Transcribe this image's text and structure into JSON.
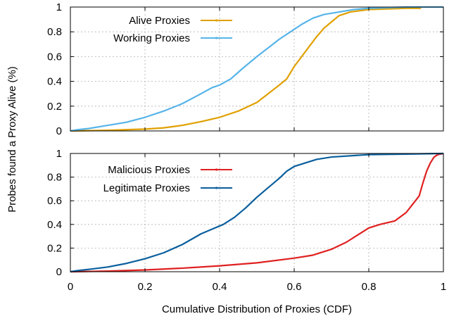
{
  "chart_data": [
    {
      "type": "line",
      "panel": "top",
      "xlim": [
        0,
        1
      ],
      "ylim": [
        0,
        1
      ],
      "x_ticks": [
        "0",
        "0.2",
        "0.4",
        "0.6",
        "0.8",
        "1"
      ],
      "y_ticks": [
        "0",
        "0.2",
        "0.4",
        "0.6",
        "0.8",
        "1"
      ],
      "grid": true,
      "legend_placement": "top-left",
      "series": [
        {
          "name": "Alive Proxies",
          "color": "#e0a000",
          "points": [
            [
              0,
              0
            ],
            [
              0.1,
              0.005
            ],
            [
              0.2,
              0.015
            ],
            [
              0.25,
              0.025
            ],
            [
              0.3,
              0.045
            ],
            [
              0.35,
              0.075
            ],
            [
              0.4,
              0.11
            ],
            [
              0.45,
              0.16
            ],
            [
              0.5,
              0.23
            ],
            [
              0.53,
              0.3
            ],
            [
              0.56,
              0.37
            ],
            [
              0.58,
              0.42
            ],
            [
              0.6,
              0.52
            ],
            [
              0.62,
              0.6
            ],
            [
              0.64,
              0.68
            ],
            [
              0.66,
              0.76
            ],
            [
              0.68,
              0.83
            ],
            [
              0.7,
              0.88
            ],
            [
              0.72,
              0.93
            ],
            [
              0.75,
              0.96
            ],
            [
              0.8,
              0.98
            ],
            [
              0.85,
              0.985
            ],
            [
              0.9,
              0.99
            ],
            [
              0.94,
              0.99
            ]
          ]
        },
        {
          "name": "Working Proxies",
          "color": "#56b4e9",
          "points": [
            [
              0,
              0
            ],
            [
              0.02,
              0.01
            ],
            [
              0.05,
              0.02
            ],
            [
              0.1,
              0.045
            ],
            [
              0.15,
              0.07
            ],
            [
              0.2,
              0.11
            ],
            [
              0.25,
              0.16
            ],
            [
              0.3,
              0.22
            ],
            [
              0.35,
              0.3
            ],
            [
              0.38,
              0.35
            ],
            [
              0.4,
              0.37
            ],
            [
              0.43,
              0.42
            ],
            [
              0.46,
              0.5
            ],
            [
              0.5,
              0.6
            ],
            [
              0.53,
              0.67
            ],
            [
              0.56,
              0.74
            ],
            [
              0.59,
              0.8
            ],
            [
              0.62,
              0.86
            ],
            [
              0.65,
              0.91
            ],
            [
              0.68,
              0.94
            ],
            [
              0.72,
              0.96
            ],
            [
              0.76,
              0.98
            ],
            [
              0.8,
              0.99
            ],
            [
              0.9,
              1
            ],
            [
              1,
              1
            ]
          ]
        }
      ]
    },
    {
      "type": "line",
      "panel": "bottom",
      "xlim": [
        0,
        1
      ],
      "ylim": [
        0,
        1
      ],
      "x_ticks": [
        "0",
        "0.2",
        "0.4",
        "0.6",
        "0.8",
        "1"
      ],
      "y_ticks": [
        "0",
        "0.2",
        "0.4",
        "0.6",
        "0.8",
        "1"
      ],
      "grid": true,
      "legend_placement": "top-left",
      "series": [
        {
          "name": "Malicious Proxies",
          "color": "#e02020",
          "points": [
            [
              0,
              0
            ],
            [
              0.1,
              0.005
            ],
            [
              0.2,
              0.015
            ],
            [
              0.3,
              0.03
            ],
            [
              0.4,
              0.05
            ],
            [
              0.5,
              0.075
            ],
            [
              0.6,
              0.115
            ],
            [
              0.65,
              0.14
            ],
            [
              0.7,
              0.19
            ],
            [
              0.74,
              0.25
            ],
            [
              0.78,
              0.33
            ],
            [
              0.8,
              0.37
            ],
            [
              0.83,
              0.4
            ],
            [
              0.87,
              0.43
            ],
            [
              0.9,
              0.5
            ],
            [
              0.92,
              0.58
            ],
            [
              0.935,
              0.64
            ],
            [
              0.945,
              0.75
            ],
            [
              0.955,
              0.85
            ],
            [
              0.965,
              0.92
            ],
            [
              0.975,
              0.97
            ],
            [
              0.985,
              0.99
            ],
            [
              1,
              1
            ]
          ]
        },
        {
          "name": "Legitimate Proxies",
          "color": "#0a5f9e",
          "points": [
            [
              0,
              0
            ],
            [
              0.02,
              0.01
            ],
            [
              0.05,
              0.02
            ],
            [
              0.1,
              0.04
            ],
            [
              0.15,
              0.07
            ],
            [
              0.2,
              0.11
            ],
            [
              0.25,
              0.16
            ],
            [
              0.3,
              0.23
            ],
            [
              0.35,
              0.32
            ],
            [
              0.38,
              0.36
            ],
            [
              0.41,
              0.4
            ],
            [
              0.44,
              0.46
            ],
            [
              0.47,
              0.54
            ],
            [
              0.5,
              0.63
            ],
            [
              0.53,
              0.71
            ],
            [
              0.56,
              0.79
            ],
            [
              0.58,
              0.85
            ],
            [
              0.6,
              0.89
            ],
            [
              0.63,
              0.92
            ],
            [
              0.66,
              0.95
            ],
            [
              0.7,
              0.97
            ],
            [
              0.8,
              0.99
            ],
            [
              0.9,
              0.995
            ],
            [
              1,
              1
            ]
          ]
        }
      ]
    }
  ],
  "ylabel": "Probes found a Proxy Alive (%)",
  "xlabel": "Cumulative Distribution of Proxies (CDF)"
}
